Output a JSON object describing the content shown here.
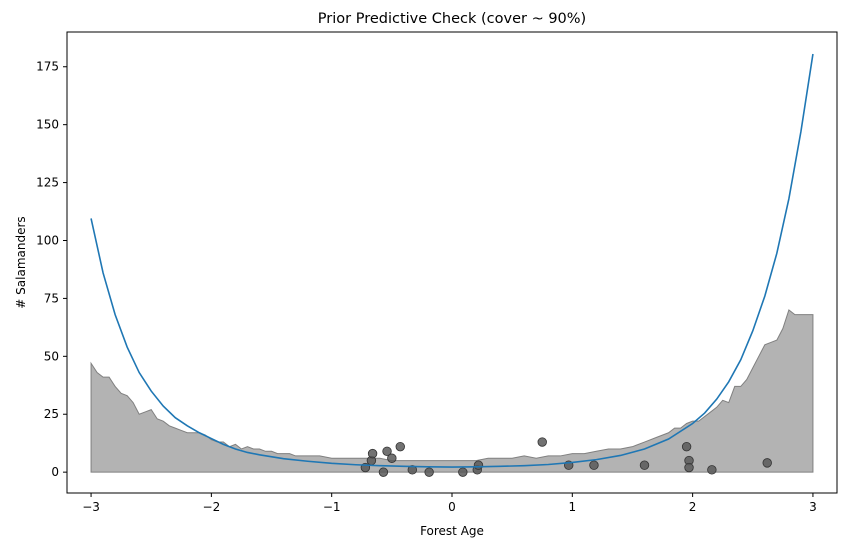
{
  "chart_data": {
    "type": "line",
    "title": "Prior Predictive Check (cover ~ 90%)",
    "xlabel": "Forest Age",
    "ylabel": "# Salamanders",
    "xlim": [
      -3.2,
      3.2
    ],
    "ylim": [
      -9,
      190
    ],
    "xticks": [
      -3,
      -2,
      -1,
      0,
      1,
      2,
      3
    ],
    "yticks": [
      0,
      25,
      50,
      75,
      100,
      125,
      150,
      175
    ],
    "grid": false,
    "colors": {
      "line": "#1f77b4",
      "band": "#b3b3b3",
      "band_edge": "#808080",
      "points": "#595959"
    },
    "mean_line": {
      "x": [
        -3.0,
        -2.9,
        -2.8,
        -2.7,
        -2.6,
        -2.5,
        -2.4,
        -2.3,
        -2.2,
        -2.1,
        -2.0,
        -1.9,
        -1.8,
        -1.7,
        -1.6,
        -1.4,
        -1.2,
        -1.0,
        -0.8,
        -0.6,
        -0.4,
        -0.2,
        0.0,
        0.2,
        0.4,
        0.6,
        0.8,
        1.0,
        1.2,
        1.4,
        1.6,
        1.8,
        2.0,
        2.1,
        2.2,
        2.3,
        2.4,
        2.5,
        2.6,
        2.7,
        2.8,
        2.9,
        3.0
      ],
      "y": [
        109.5,
        86,
        68,
        54,
        43,
        35,
        28.5,
        23.5,
        20,
        17,
        14.5,
        12,
        10,
        8.5,
        7.5,
        5.8,
        4.7,
        3.8,
        3.2,
        2.8,
        2.5,
        2.3,
        2.2,
        2.3,
        2.5,
        2.8,
        3.3,
        4.2,
        5.4,
        7.2,
        10,
        14.3,
        21,
        25.5,
        31.5,
        39,
        48.5,
        61,
        76,
        94.5,
        118,
        147,
        180.5
      ]
    },
    "band": {
      "x": [
        -3.0,
        -2.95,
        -2.9,
        -2.85,
        -2.8,
        -2.75,
        -2.7,
        -2.65,
        -2.6,
        -2.55,
        -2.5,
        -2.45,
        -2.4,
        -2.35,
        -2.3,
        -2.25,
        -2.2,
        -2.15,
        -2.1,
        -2.05,
        -2.0,
        -1.95,
        -1.9,
        -1.85,
        -1.8,
        -1.75,
        -1.7,
        -1.65,
        -1.6,
        -1.55,
        -1.5,
        -1.45,
        -1.4,
        -1.35,
        -1.3,
        -1.25,
        -1.2,
        -1.1,
        -1.0,
        -0.9,
        -0.8,
        -0.7,
        -0.6,
        -0.5,
        -0.4,
        -0.3,
        -0.2,
        -0.1,
        0.0,
        0.1,
        0.2,
        0.3,
        0.4,
        0.5,
        0.6,
        0.7,
        0.8,
        0.9,
        1.0,
        1.1,
        1.2,
        1.3,
        1.4,
        1.5,
        1.6,
        1.7,
        1.8,
        1.85,
        1.9,
        1.95,
        2.0,
        2.05,
        2.1,
        2.15,
        2.2,
        2.25,
        2.3,
        2.35,
        2.4,
        2.45,
        2.5,
        2.55,
        2.6,
        2.65,
        2.7,
        2.75,
        2.8,
        2.85,
        2.9,
        2.95,
        3.0
      ],
      "upper": [
        47,
        43,
        41,
        41,
        37,
        34,
        33,
        30,
        25,
        26,
        27,
        23,
        22,
        20,
        19,
        18,
        17,
        17,
        17,
        16,
        14,
        13,
        13,
        11,
        12,
        10,
        11,
        10,
        10,
        9,
        9,
        8,
        8,
        8,
        7,
        7,
        7,
        7,
        6,
        6,
        6,
        6,
        6,
        5,
        5,
        5,
        5,
        5,
        5,
        5,
        5,
        6,
        6,
        6,
        7,
        6,
        7,
        7,
        8,
        8,
        9,
        10,
        10,
        11,
        13,
        15,
        17,
        19,
        19,
        21,
        22,
        22,
        24,
        26,
        28,
        31,
        30,
        37,
        37,
        40,
        45,
        50,
        55,
        56,
        57,
        62,
        70,
        68,
        68,
        68,
        68
      ],
      "lower": 0
    },
    "observations": {
      "x": [
        -0.72,
        -0.67,
        -0.66,
        -0.57,
        -0.54,
        -0.5,
        -0.43,
        -0.33,
        -0.19,
        0.09,
        0.21,
        0.22,
        0.75,
        0.97,
        1.18,
        1.6,
        1.95,
        1.97,
        1.97,
        2.16,
        2.62
      ],
      "y": [
        2,
        5,
        8,
        0,
        9,
        6,
        11,
        1,
        0,
        0,
        1,
        3,
        13,
        3,
        3,
        3,
        11,
        5,
        2,
        1,
        4
      ]
    }
  }
}
